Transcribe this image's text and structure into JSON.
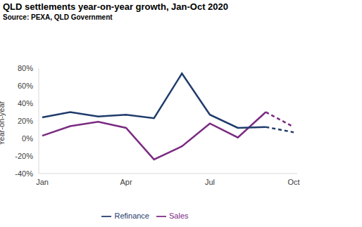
{
  "chart_data": {
    "type": "line",
    "title": "QLD settlements year-on-year growth, Jan-Oct 2020",
    "subtitle": "Source: PEXA, QLD Government",
    "y_label": "Year-on-year",
    "categories": [
      "Jan",
      null,
      null,
      "Apr",
      null,
      null,
      "Jul",
      null,
      null,
      "Oct"
    ],
    "series": [
      {
        "name": "Sales",
        "color": "#7B2B82",
        "values": [
          3,
          14,
          19,
          12,
          -24,
          -9,
          17,
          1,
          30,
          13
        ]
      },
      {
        "name": "Refinance",
        "color": "#1F3B6B",
        "values": [
          24,
          30,
          25,
          27,
          23,
          74,
          27,
          12,
          13,
          7
        ]
      }
    ],
    "ylim": [
      -40,
      80
    ],
    "yticks": [
      {
        "value": -40,
        "label": "-40%"
      },
      {
        "value": -20,
        "label": "-20%"
      },
      {
        "value": 0,
        "label": "0%"
      },
      {
        "value": 20,
        "label": "20%"
      },
      {
        "value": 40,
        "label": "40%"
      },
      {
        "value": 60,
        "label": "60%"
      },
      {
        "value": 80,
        "label": "80%"
      }
    ],
    "grid": false,
    "legend": "bottom"
  }
}
